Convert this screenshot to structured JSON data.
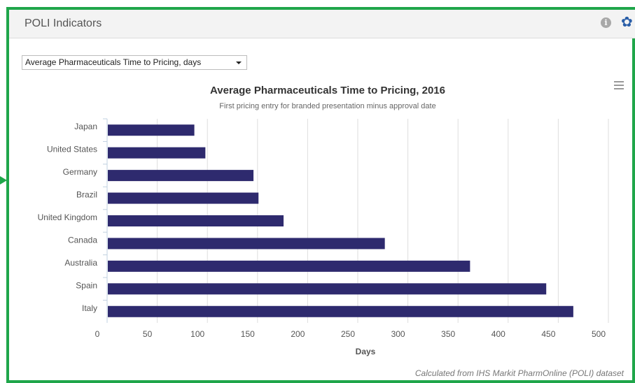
{
  "panel": {
    "title": "POLI Indicators",
    "info_icon": "info-icon",
    "settings_icon": "gear-icon"
  },
  "indicator_select": {
    "value": "Average Pharmaceuticals Time to Pricing, days"
  },
  "menu_icon": "hamburger-menu-icon",
  "credit": "Calculated from IHS Markit PharmOnline (POLI) dataset",
  "colors": {
    "bar": "#2e2a6e",
    "frame": "#1fa64a",
    "gear": "#2a5ea8"
  },
  "chart_data": {
    "type": "bar",
    "orientation": "horizontal",
    "title": "Average Pharmaceuticals Time to Pricing, 2016",
    "subtitle": "First pricing entry for branded presentation minus approval date",
    "categories": [
      "Japan",
      "United States",
      "Germany",
      "Brazil",
      "United Kingdom",
      "Canada",
      "Australia",
      "Spain",
      "Italy"
    ],
    "values": [
      87,
      98,
      146,
      151,
      176,
      277,
      362,
      438,
      465
    ],
    "xlabel": "Days",
    "ylabel": "",
    "xlim": [
      0,
      500
    ],
    "xticks": [
      0,
      50,
      100,
      150,
      200,
      250,
      300,
      350,
      400,
      450,
      500
    ],
    "grid": true,
    "legend": "none"
  }
}
